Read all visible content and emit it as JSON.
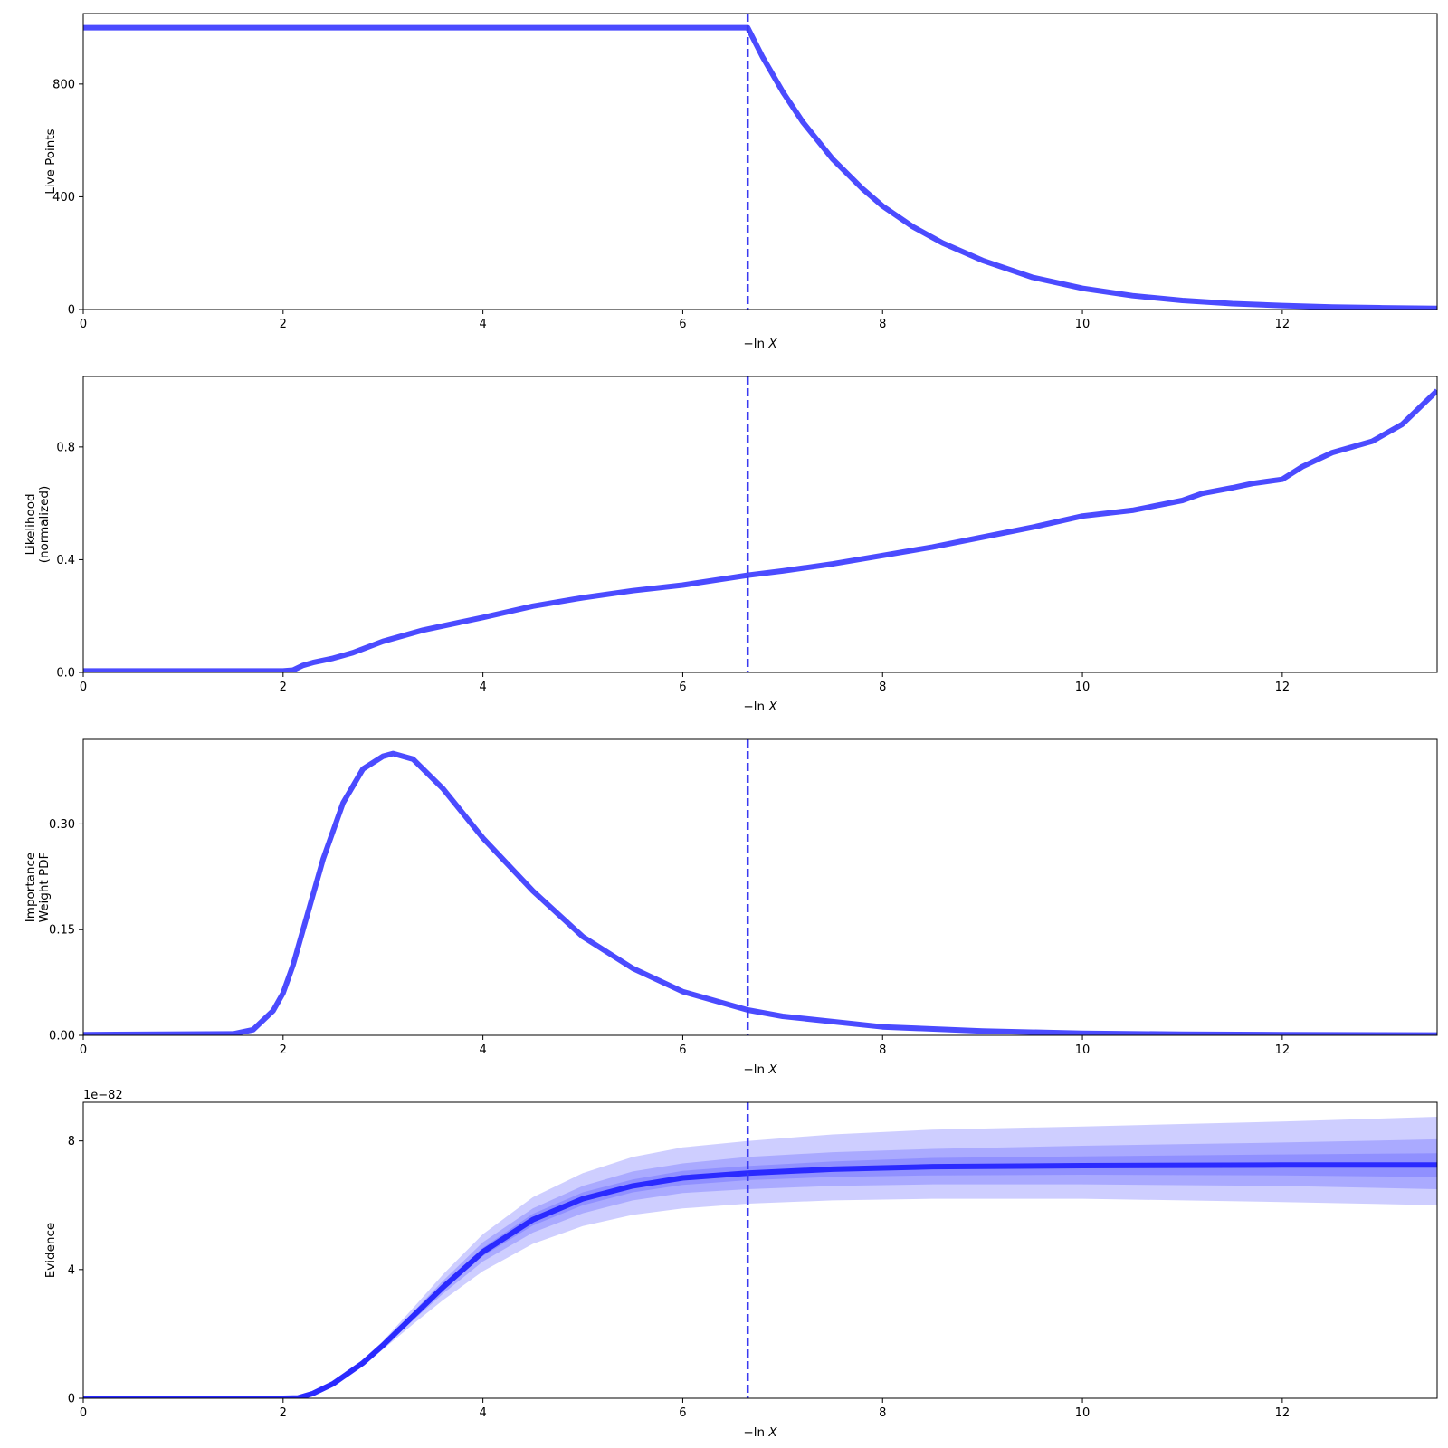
{
  "chart_data": [
    {
      "type": "line",
      "ylabel": [
        "Live Points"
      ],
      "xlabel": {
        "prefix": "−ln ",
        "var": "X"
      },
      "xlim": [
        0,
        13.55
      ],
      "ylim": [
        0,
        1050
      ],
      "xticks": [
        0,
        2,
        4,
        6,
        8,
        10,
        12
      ],
      "yticks": [
        0,
        400,
        800
      ],
      "offset_text": "",
      "vline_x": 6.65,
      "line_color": "#4b4bff",
      "series": [
        {
          "x": [
            0,
            6.65,
            6.8,
            7.0,
            7.2,
            7.5,
            7.8,
            8.0,
            8.3,
            8.6,
            9.0,
            9.5,
            10.0,
            10.5,
            11.0,
            11.5,
            12.0,
            12.5,
            13.0,
            13.55
          ],
          "y": [
            1000,
            1000,
            895,
            773,
            666,
            534,
            428,
            367,
            294,
            236,
            174,
            114,
            75,
            49,
            32,
            21,
            14,
            9,
            6,
            4
          ]
        }
      ],
      "bands": []
    },
    {
      "type": "line",
      "ylabel": [
        "Likelihood",
        "(normalized)"
      ],
      "xlabel": {
        "prefix": "−ln ",
        "var": "X"
      },
      "xlim": [
        0,
        13.55
      ],
      "ylim": [
        0,
        1.05
      ],
      "xticks": [
        0,
        2,
        4,
        6,
        8,
        10,
        12
      ],
      "yticks": [
        0.0,
        0.4,
        0.8
      ],
      "offset_text": "",
      "vline_x": 6.65,
      "line_color": "#4b4bff",
      "series": [
        {
          "x": [
            0,
            2.0,
            2.1,
            2.2,
            2.3,
            2.5,
            2.7,
            3.0,
            3.4,
            4.0,
            4.5,
            5.0,
            5.5,
            6.0,
            6.65,
            7.0,
            7.5,
            8.0,
            8.5,
            9.0,
            9.5,
            10.0,
            10.5,
            11.0,
            11.2,
            11.5,
            11.7,
            12.0,
            12.2,
            12.5,
            12.9,
            13.2,
            13.55
          ],
          "y": [
            0.005,
            0.005,
            0.008,
            0.025,
            0.035,
            0.05,
            0.07,
            0.11,
            0.15,
            0.195,
            0.235,
            0.265,
            0.29,
            0.31,
            0.345,
            0.36,
            0.385,
            0.415,
            0.445,
            0.48,
            0.515,
            0.555,
            0.575,
            0.61,
            0.635,
            0.655,
            0.67,
            0.685,
            0.73,
            0.78,
            0.82,
            0.88,
            1.0
          ]
        }
      ],
      "bands": []
    },
    {
      "type": "line",
      "ylabel": [
        "Importance",
        "Weight PDF"
      ],
      "xlabel": {
        "prefix": "−ln ",
        "var": "X"
      },
      "xlim": [
        0,
        13.55
      ],
      "ylim": [
        0,
        0.42
      ],
      "xticks": [
        0,
        2,
        4,
        6,
        8,
        10,
        12
      ],
      "yticks": [
        0.0,
        0.15,
        0.3
      ],
      "ytick_labels": [
        "0.00",
        "0.15",
        "0.30"
      ],
      "offset_text": "",
      "vline_x": 6.65,
      "line_color": "#4b4bff",
      "series": [
        {
          "x": [
            0,
            1.5,
            1.7,
            1.9,
            2.0,
            2.1,
            2.2,
            2.4,
            2.6,
            2.8,
            3.0,
            3.1,
            3.3,
            3.6,
            4.0,
            4.5,
            5.0,
            5.5,
            6.0,
            6.65,
            7.0,
            8.0,
            9.0,
            10.0,
            11.0,
            12.0,
            13.55
          ],
          "y": [
            0.001,
            0.002,
            0.008,
            0.035,
            0.06,
            0.1,
            0.15,
            0.25,
            0.33,
            0.378,
            0.396,
            0.4,
            0.392,
            0.35,
            0.28,
            0.205,
            0.14,
            0.095,
            0.062,
            0.036,
            0.027,
            0.012,
            0.006,
            0.003,
            0.0015,
            0.001,
            0.0005
          ]
        }
      ],
      "bands": []
    },
    {
      "type": "area",
      "ylabel": [
        "Evidence"
      ],
      "xlabel": {
        "prefix": "−ln ",
        "var": "X"
      },
      "xlim": [
        0,
        13.55
      ],
      "ylim": [
        0,
        9.2
      ],
      "xticks": [
        0,
        2,
        4,
        6,
        8,
        10,
        12
      ],
      "yticks": [
        0,
        4,
        8
      ],
      "offset_text": "1e−82",
      "vline_x": 6.65,
      "line_color": "#2a2aff",
      "series": [
        {
          "x": [
            0,
            2.0,
            2.15,
            2.3,
            2.5,
            2.8,
            3.0,
            3.3,
            3.6,
            4.0,
            4.5,
            5.0,
            5.5,
            6.0,
            6.65,
            7.5,
            8.5,
            10.0,
            12.0,
            13.55
          ],
          "y": [
            0,
            0,
            0.01,
            0.15,
            0.45,
            1.1,
            1.65,
            2.55,
            3.45,
            4.55,
            5.55,
            6.2,
            6.6,
            6.85,
            7.0,
            7.12,
            7.2,
            7.23,
            7.25,
            7.25
          ]
        }
      ],
      "bands": [
        {
          "x": [
            0,
            2.0,
            2.15,
            2.3,
            2.5,
            2.8,
            3.0,
            3.3,
            3.6,
            4.0,
            4.5,
            5.0,
            5.5,
            6.0,
            6.65,
            7.5,
            8.5,
            10.0,
            12.0,
            13.55
          ],
          "lo": [
            0,
            0,
            0.01,
            0.12,
            0.4,
            1.0,
            1.52,
            2.3,
            3.05,
            3.95,
            4.8,
            5.35,
            5.7,
            5.9,
            6.05,
            6.15,
            6.2,
            6.2,
            6.1,
            6.0
          ],
          "hi": [
            0,
            0,
            0.01,
            0.18,
            0.52,
            1.2,
            1.78,
            2.8,
            3.85,
            5.1,
            6.25,
            7.0,
            7.5,
            7.8,
            8.0,
            8.2,
            8.35,
            8.45,
            8.6,
            8.75
          ],
          "color": "#4b4bff",
          "opacity": 0.27
        },
        {
          "x": [
            0,
            2.0,
            2.15,
            2.3,
            2.5,
            2.8,
            3.0,
            3.3,
            3.6,
            4.0,
            4.5,
            5.0,
            5.5,
            6.0,
            6.65,
            7.5,
            8.5,
            10.0,
            12.0,
            13.55
          ],
          "lo": [
            0,
            0,
            0.01,
            0.14,
            0.43,
            1.05,
            1.58,
            2.42,
            3.25,
            4.25,
            5.15,
            5.75,
            6.15,
            6.38,
            6.5,
            6.6,
            6.65,
            6.65,
            6.6,
            6.5
          ],
          "hi": [
            0,
            0,
            0.01,
            0.16,
            0.48,
            1.15,
            1.72,
            2.68,
            3.65,
            4.85,
            5.9,
            6.6,
            7.05,
            7.3,
            7.5,
            7.65,
            7.75,
            7.85,
            7.95,
            8.05
          ],
          "color": "#4b4bff",
          "opacity": 0.27
        },
        {
          "x": [
            0,
            2.0,
            2.15,
            2.3,
            2.5,
            2.8,
            3.0,
            3.3,
            3.6,
            4.0,
            4.5,
            5.0,
            5.5,
            6.0,
            6.65,
            7.5,
            8.5,
            10.0,
            12.0,
            13.55
          ],
          "lo": [
            0,
            0,
            0.01,
            0.145,
            0.44,
            1.08,
            1.62,
            2.5,
            3.37,
            4.42,
            5.37,
            6.0,
            6.4,
            6.63,
            6.78,
            6.88,
            6.93,
            6.95,
            6.93,
            6.88
          ],
          "hi": [
            0,
            0,
            0.01,
            0.155,
            0.46,
            1.12,
            1.68,
            2.6,
            3.53,
            4.68,
            5.73,
            6.4,
            6.8,
            7.07,
            7.22,
            7.36,
            7.47,
            7.52,
            7.58,
            7.62
          ],
          "color": "#4b4bff",
          "opacity": 0.27
        }
      ]
    }
  ]
}
